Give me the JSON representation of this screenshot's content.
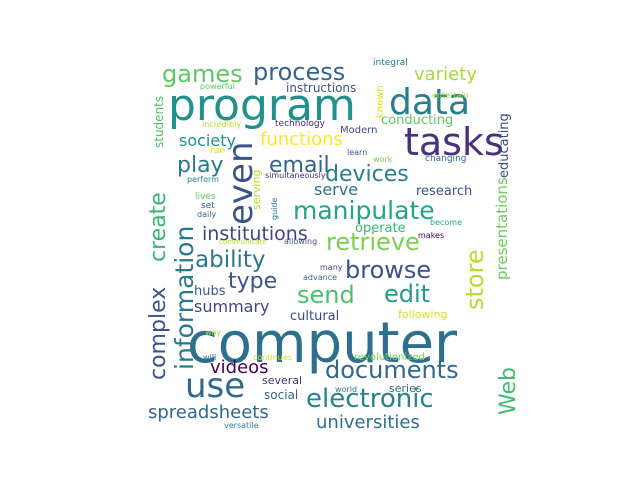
{
  "words": [
    {
      "text": "computer",
      "color": "#2c6f8e"
    },
    {
      "text": "program",
      "color": "#21918c"
    },
    {
      "text": "tasks",
      "color": "#46327e"
    },
    {
      "text": "data",
      "color": "#277f8e"
    },
    {
      "text": "even",
      "color": "#3b528b"
    },
    {
      "text": "use",
      "color": "#31688e"
    },
    {
      "text": "information",
      "color": "#2a788e"
    },
    {
      "text": "create",
      "color": "#35b779"
    },
    {
      "text": "complex",
      "color": "#3b528b"
    },
    {
      "text": "Web",
      "color": "#3fbc73"
    },
    {
      "text": "electronic",
      "color": "#26828e"
    },
    {
      "text": "documents",
      "color": "#31688e"
    },
    {
      "text": "manipulate",
      "color": "#21a685"
    },
    {
      "text": "retrieve",
      "color": "#7ad151"
    },
    {
      "text": "browse",
      "color": "#3b528b"
    },
    {
      "text": "store",
      "color": "#b5de2b"
    },
    {
      "text": "ability",
      "color": "#2a788e"
    },
    {
      "text": "send",
      "color": "#4ac16d"
    },
    {
      "text": "edit",
      "color": "#1f9e89"
    },
    {
      "text": "process",
      "color": "#33638d"
    },
    {
      "text": "games",
      "color": "#5ec962"
    },
    {
      "text": "email",
      "color": "#33638d"
    },
    {
      "text": "devices",
      "color": "#26828e"
    },
    {
      "text": "play",
      "color": "#2a788e"
    },
    {
      "text": "type",
      "color": "#3b528b"
    },
    {
      "text": "variety",
      "color": "#a8db34"
    },
    {
      "text": "institutions",
      "color": "#414487"
    },
    {
      "text": "spreadsheets",
      "color": "#31688e"
    },
    {
      "text": "universities",
      "color": "#2c728e"
    },
    {
      "text": "presentations",
      "color": "#6ccd5a"
    },
    {
      "text": "videos",
      "color": "#440154"
    },
    {
      "text": "functions",
      "color": "#fde725"
    },
    {
      "text": "society",
      "color": "#21918c"
    },
    {
      "text": "serve",
      "color": "#2c728e"
    },
    {
      "text": "summary",
      "color": "#404688"
    },
    {
      "text": "hubs",
      "color": "#3b528b"
    },
    {
      "text": "cultural",
      "color": "#3e4989"
    },
    {
      "text": "research",
      "color": "#3b528b"
    },
    {
      "text": "operate",
      "color": "#35b779"
    },
    {
      "text": "conducting",
      "color": "#5ec962"
    },
    {
      "text": "educating",
      "color": "#3e4989"
    },
    {
      "text": "instructions",
      "color": "#3b528b"
    },
    {
      "text": "social",
      "color": "#31688e"
    },
    {
      "text": "several",
      "color": "#46327e"
    },
    {
      "text": "series",
      "color": "#2c728e"
    },
    {
      "text": "following",
      "color": "#d2e21b"
    },
    {
      "text": "revolutionized",
      "color": "#7ad151"
    },
    {
      "text": "students",
      "color": "#4ac16d"
    },
    {
      "text": "serving",
      "color": "#b5de2b"
    },
    {
      "text": "known",
      "color": "#d8e219"
    },
    {
      "text": "Modern",
      "color": "#3e4989"
    },
    {
      "text": "technology",
      "color": "#482878"
    },
    {
      "text": "integral",
      "color": "#2c728e"
    },
    {
      "text": "entertain",
      "color": "#a8db34"
    },
    {
      "text": "powerful",
      "color": "#5ec962"
    },
    {
      "text": "incredibly",
      "color": "#b5de2b"
    },
    {
      "text": "run",
      "color": "#d8e219"
    },
    {
      "text": "perform",
      "color": "#26828e"
    },
    {
      "text": "simultaneously",
      "color": "#482878"
    },
    {
      "text": "learn",
      "color": "#3b528b"
    },
    {
      "text": "work",
      "color": "#7ad151"
    },
    {
      "text": "changing",
      "color": "#31688e"
    },
    {
      "text": "lives",
      "color": "#5ec962"
    },
    {
      "text": "set",
      "color": "#31688e"
    },
    {
      "text": "daily",
      "color": "#31688e"
    },
    {
      "text": "guide",
      "color": "#2a788e"
    },
    {
      "text": "become",
      "color": "#21a685"
    },
    {
      "text": "makes",
      "color": "#440154"
    },
    {
      "text": "communicate",
      "color": "#b5de2b"
    },
    {
      "text": "allowing",
      "color": "#3b528b"
    },
    {
      "text": "many",
      "color": "#3e4989"
    },
    {
      "text": "advance",
      "color": "#31688e"
    },
    {
      "text": "way",
      "color": "#a8db34"
    },
    {
      "text": "will",
      "color": "#31688e"
    },
    {
      "text": "continues",
      "color": "#d2e21b"
    },
    {
      "text": "world",
      "color": "#2a788e"
    },
    {
      "text": "versatile",
      "color": "#26828e"
    }
  ]
}
